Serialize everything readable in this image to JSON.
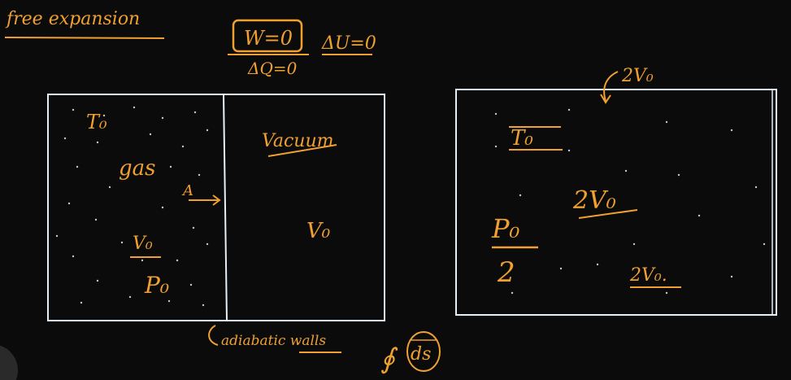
{
  "colors": {
    "background": "#0b0b0c",
    "chalk_orange": "#f0a030",
    "box_outline": "#e6f0f8"
  },
  "title": "free expansion",
  "equations": {
    "work": "W=0",
    "heat": "ΔQ=0",
    "internal_energy": "ΔU=0"
  },
  "left_container": {
    "gas_side": {
      "temperature": "T₀",
      "label": "gas",
      "volume": "V₀",
      "pressure": "P₀",
      "area": "A"
    },
    "vacuum_side": {
      "label": "Vacuum",
      "volume": "V₀"
    }
  },
  "right_container": {
    "top_volume": "2V₀",
    "temperature": "T₀",
    "volume": "2V₀",
    "pressure_numerator": "P₀",
    "pressure_denominator": "2",
    "volume_small": "2V₀."
  },
  "bottom_notes": {
    "walls": "adiabatic walls",
    "integral": "∮",
    "element": "ds"
  }
}
